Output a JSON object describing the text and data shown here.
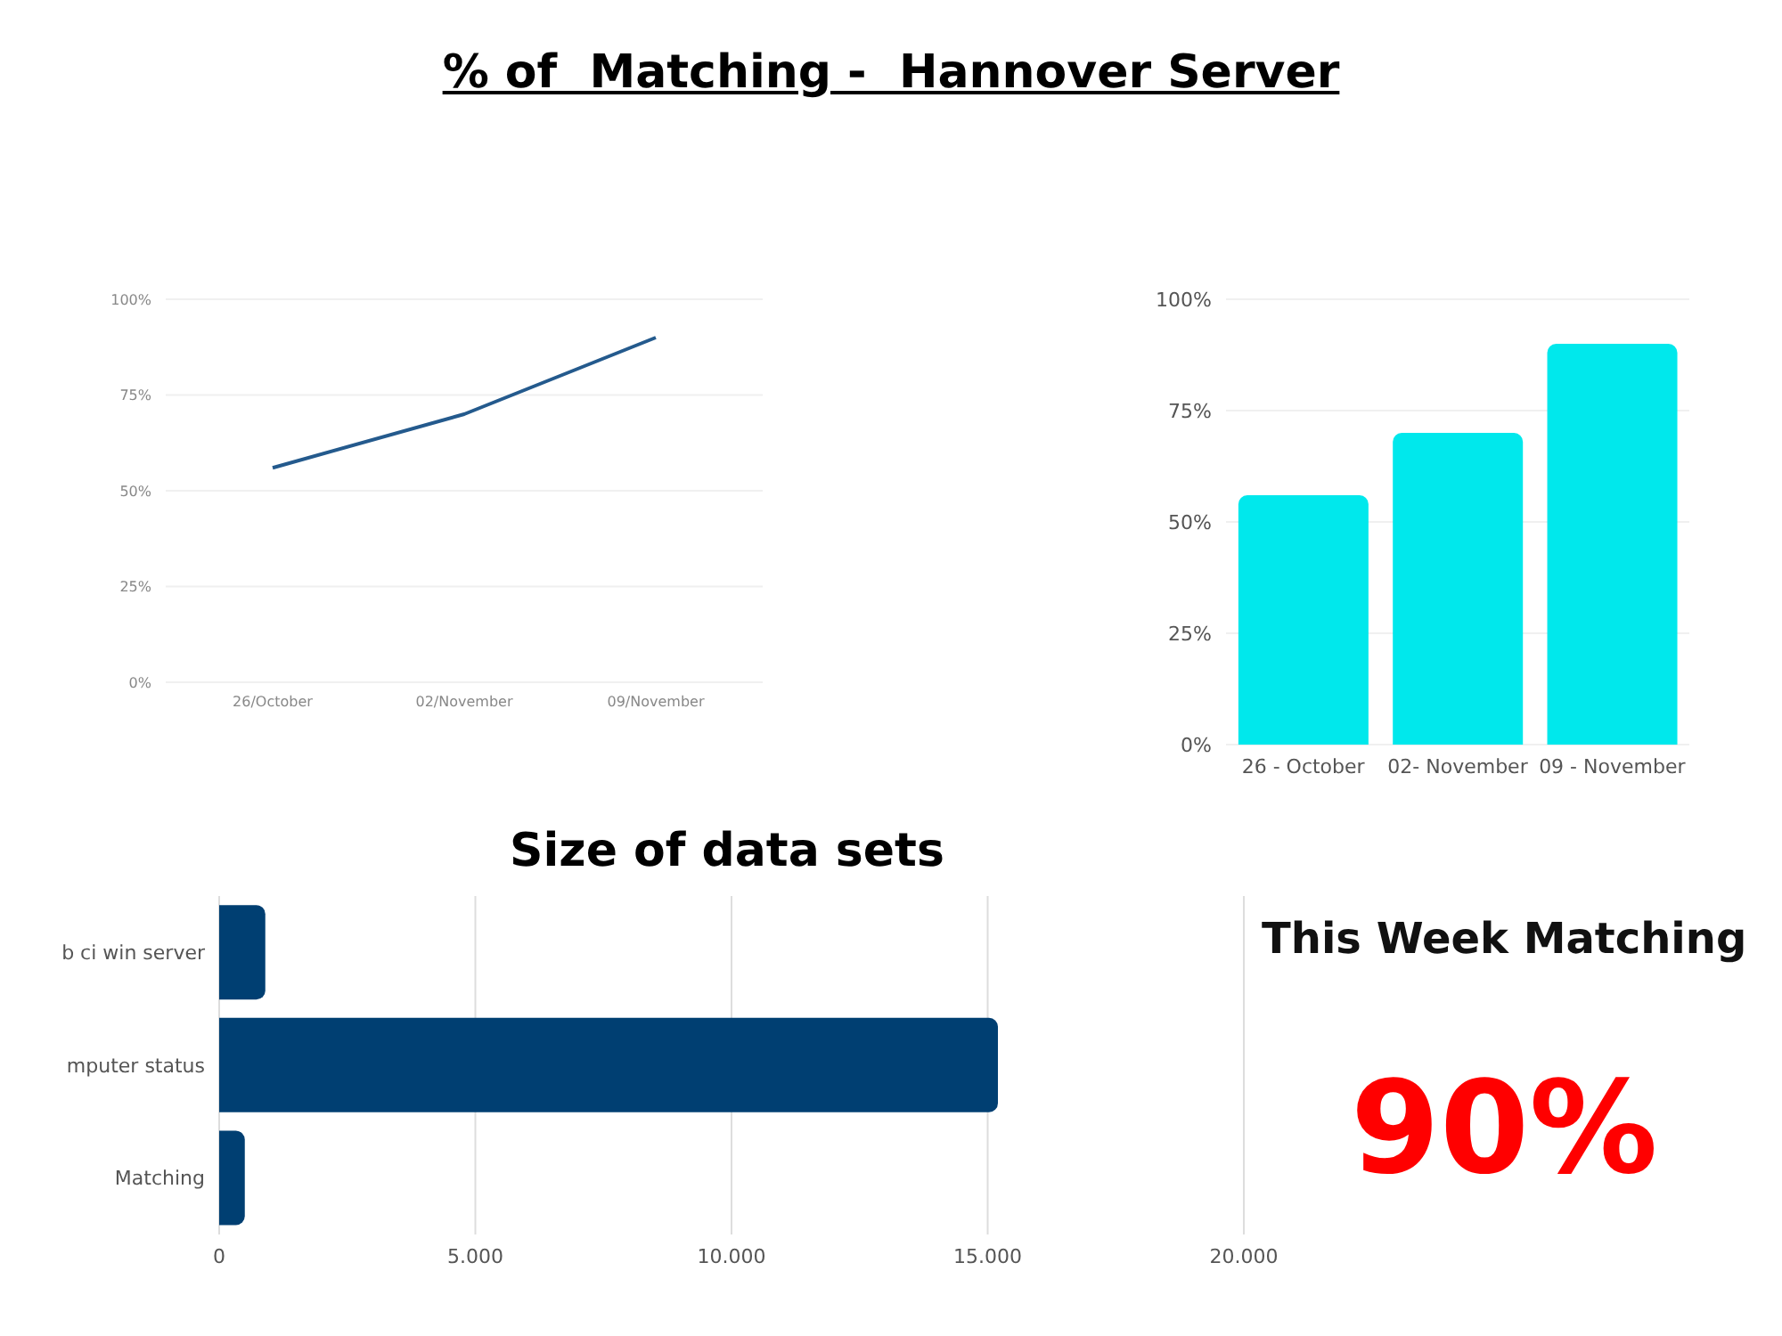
{
  "chart_data": [
    {
      "type": "line",
      "title": "% of  Matching -  Hannover Server",
      "categories": [
        "26/October",
        "02/November",
        "09/November"
      ],
      "series": [
        {
          "color": "#245a8d",
          "values": [
            56,
            70,
            90
          ]
        }
      ],
      "ylim": [
        0,
        100
      ],
      "yticks": [
        {
          "value": 0,
          "label": "0%"
        },
        {
          "value": 25,
          "label": "25%"
        },
        {
          "value": 50,
          "label": "50%"
        },
        {
          "value": 75,
          "label": "75%"
        },
        {
          "value": 100,
          "label": "100%"
        }
      ],
      "grid": "y",
      "marker": "none"
    },
    {
      "type": "bar",
      "categories": [
        "26 - October",
        "02- November",
        "09 - November"
      ],
      "series": [
        {
          "color": "#00e8ec",
          "values": [
            56,
            70,
            90
          ]
        }
      ],
      "ylim": [
        0,
        100
      ],
      "yticks": [
        {
          "value": 0,
          "label": "0%"
        },
        {
          "value": 25,
          "label": "25%"
        },
        {
          "value": 50,
          "label": "50%"
        },
        {
          "value": 75,
          "label": "75%"
        },
        {
          "value": 100,
          "label": "100%"
        }
      ],
      "grid": "y"
    },
    {
      "type": "bar",
      "orientation": "horizontal",
      "title": "Size of data sets",
      "categories": [
        "b ci win server",
        "mputer status",
        "Matching"
      ],
      "series": [
        {
          "color": "#003f72",
          "values": [
            900,
            15200,
            500
          ]
        }
      ],
      "xlim": [
        0,
        20000
      ],
      "xticks": [
        0,
        {
          "value": 5000,
          "label": "5.000"
        },
        {
          "value": 10000,
          "label": "10.000"
        },
        {
          "value": 15000,
          "label": "15.000"
        },
        {
          "value": 20000,
          "label": "20.000"
        }
      ],
      "grid": "x"
    },
    {
      "type": "other",
      "title": "This Week Matching",
      "annotations": [
        "90%"
      ]
    }
  ]
}
